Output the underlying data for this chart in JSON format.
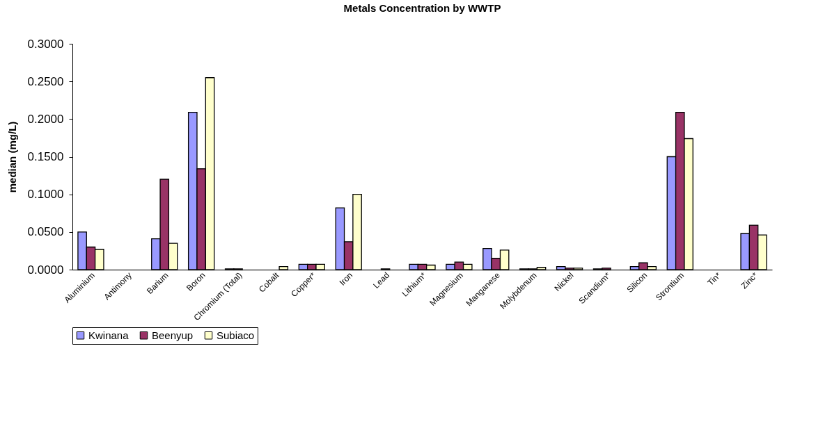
{
  "chart_data": {
    "type": "bar",
    "title": "Metals Concentration by WWTP",
    "ylabel": "median (mg/L)",
    "categories": [
      "Aluminium",
      "Antimony",
      "Barium",
      "Boron",
      "Chromium (Total)",
      "Cobalt",
      "Copper*",
      "Iron",
      "Lead",
      "Lithium*",
      "Magnesium",
      "Manganese",
      "Molybdenum",
      "Nickel",
      "Scandium*",
      "Silicon",
      "Strontium",
      "Tin*",
      "Zinc*"
    ],
    "series": [
      {
        "name": "Kwinana",
        "color": "#9999ff",
        "values": [
          0.05,
          null,
          0.041,
          0.209,
          0.001,
          null,
          0.007,
          0.082,
          null,
          0.007,
          0.007,
          0.028,
          0.001,
          0.004,
          0.001,
          0.004,
          0.15,
          null,
          0.048
        ]
      },
      {
        "name": "Beenyup",
        "color": "#993366",
        "values": [
          0.03,
          null,
          0.12,
          0.134,
          0.001,
          null,
          0.007,
          0.037,
          0.001,
          0.007,
          0.01,
          0.015,
          0.001,
          0.002,
          0.002,
          0.009,
          0.209,
          null,
          0.059
        ]
      },
      {
        "name": "Subiaco",
        "color": "#ffffcc",
        "values": [
          0.027,
          null,
          0.035,
          0.255,
          null,
          0.004,
          0.007,
          0.1,
          null,
          0.006,
          0.007,
          0.026,
          0.003,
          0.002,
          null,
          0.004,
          0.174,
          null,
          0.046
        ]
      }
    ],
    "ylim": [
      0,
      0.3
    ],
    "yticks": [
      {
        "value": 0,
        "label": "0.0000"
      },
      {
        "value": 0.05,
        "label": "0.0500"
      },
      {
        "value": 0.1,
        "label": "0.1000"
      },
      {
        "value": 0.15,
        "label": "0.1500"
      },
      {
        "value": 0.2,
        "label": "0.2000"
      },
      {
        "value": 0.25,
        "label": "0.2500"
      },
      {
        "value": 0.3,
        "label": "0.3000"
      }
    ],
    "grid": false,
    "legend": "bottom"
  }
}
